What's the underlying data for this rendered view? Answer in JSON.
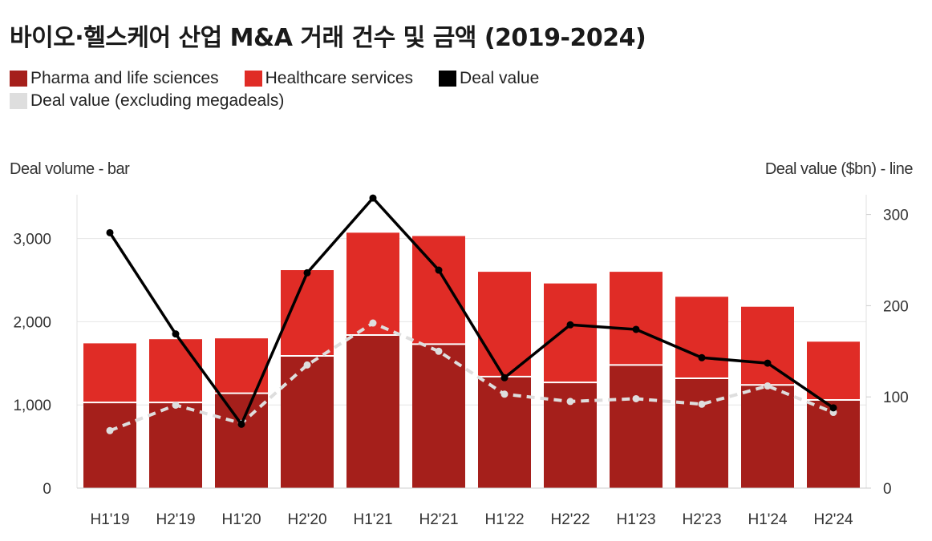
{
  "title": "바이오·헬스케어 산업 M&A 거래 건수 및 금액 (2019-2024)",
  "legend": [
    {
      "label": "Pharma and life sciences",
      "color": "#a51f1b"
    },
    {
      "label": "Healthcare services",
      "color": "#e02c26"
    },
    {
      "label": "Deal value",
      "color": "#000000"
    },
    {
      "label": "Deal value (excluding megadeals)",
      "color": "#dedede"
    }
  ],
  "chart_data": {
    "type": "bar",
    "stacked": true,
    "categories": [
      "H1'19",
      "H2'19",
      "H1'20",
      "H2'20",
      "H1'21",
      "H2'21",
      "H1'22",
      "H2'22",
      "H1'23",
      "H2'23",
      "H1'24",
      "H2'24"
    ],
    "series": [
      {
        "name": "Pharma and life sciences",
        "axis": "left",
        "type": "bar",
        "color": "#a51f1b",
        "values": [
          1030,
          1030,
          1140,
          1590,
          1840,
          1730,
          1340,
          1270,
          1480,
          1320,
          1240,
          1060
        ]
      },
      {
        "name": "Healthcare services",
        "axis": "left",
        "type": "bar",
        "color": "#e02c26",
        "values": [
          710,
          760,
          660,
          1030,
          1230,
          1300,
          1260,
          1190,
          1120,
          980,
          940,
          700
        ]
      },
      {
        "name": "Deal value",
        "axis": "right",
        "type": "line",
        "color": "#000000",
        "values": [
          280,
          169,
          70,
          236,
          318,
          239,
          121,
          179,
          174,
          143,
          137,
          88
        ]
      },
      {
        "name": "Deal value (excluding megadeals)",
        "axis": "right",
        "type": "line",
        "dashed": true,
        "color": "#dedede",
        "values": [
          63,
          91,
          71,
          135,
          181,
          150,
          103,
          95,
          98,
          92,
          112,
          83
        ]
      }
    ],
    "ylabel_left": "Deal volume - bar",
    "ylabel_right": "Deal value ($bn) - line",
    "ylim_left": [
      0,
      3500
    ],
    "yticks_left": [
      0,
      1000,
      2000,
      3000
    ],
    "ytick_labels_left": [
      "0",
      "1,000",
      "2,000",
      "3,000"
    ],
    "ylim_right": [
      0,
      300
    ],
    "yticks_right": [
      0,
      100,
      200,
      300
    ],
    "ytick_labels_right": [
      "0",
      "100",
      "200",
      "300"
    ],
    "grid": true,
    "legend_position": "top-left"
  }
}
